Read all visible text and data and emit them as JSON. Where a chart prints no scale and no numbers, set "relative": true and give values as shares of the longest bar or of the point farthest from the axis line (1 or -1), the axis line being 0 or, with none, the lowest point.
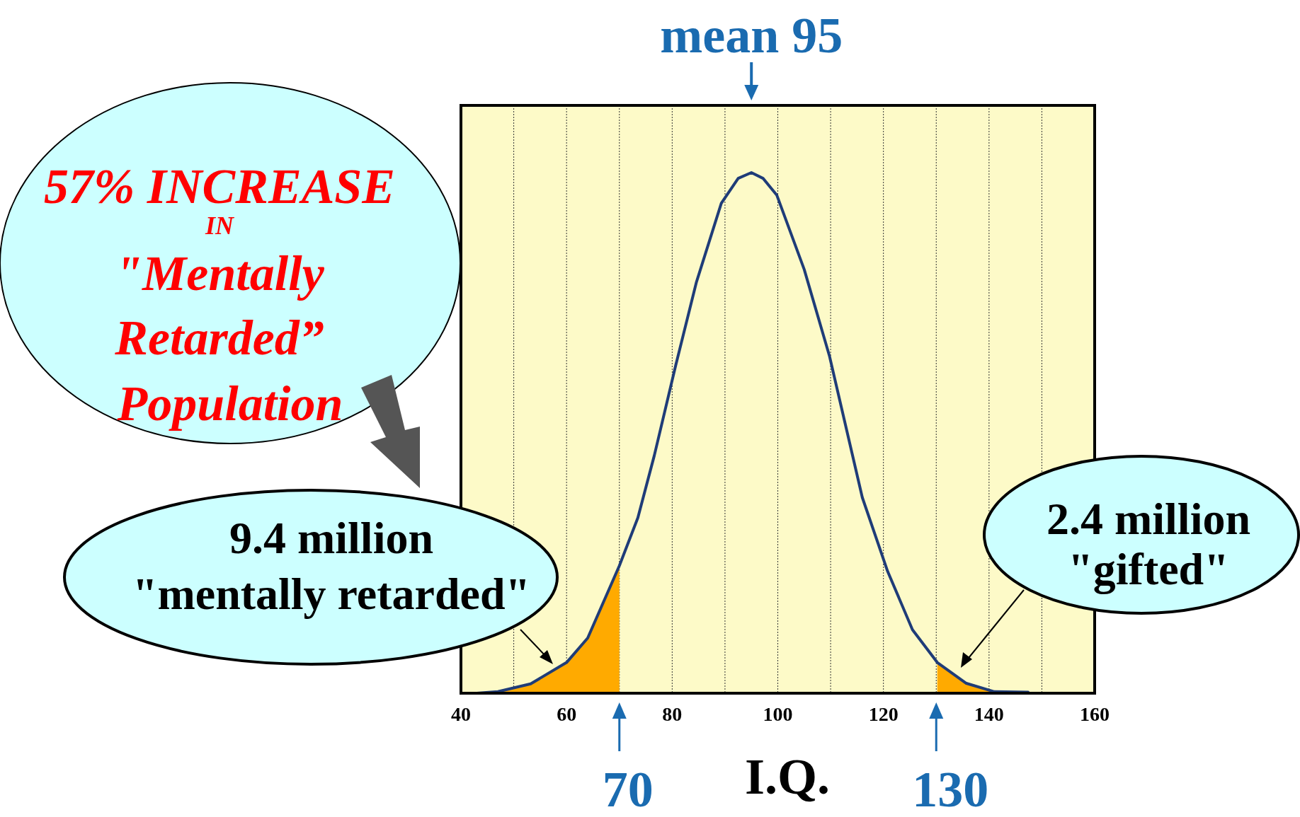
{
  "chart_data": {
    "type": "line",
    "xlabel": "I.Q.",
    "relative": true,
    "grid": "x",
    "xlim": [
      40,
      160
    ],
    "xticks": [
      40,
      {
        "value": 50,
        "label": null
      },
      60,
      {
        "value": 70,
        "label": null
      },
      80,
      {
        "value": 90,
        "label": null
      },
      100,
      {
        "value": 110,
        "label": null
      },
      120,
      {
        "value": 130,
        "label": null
      },
      140,
      {
        "value": 150,
        "label": null
      },
      160
    ],
    "series": [
      {
        "type": "area",
        "color": "#ffaa00",
        "x": [
          43,
          47,
          53.2,
          60,
          64,
          70
        ],
        "values": [
          0,
          0.003,
          0.018,
          0.059,
          0.106,
          0.245
        ]
      },
      {
        "type": "area",
        "color": "#ffaa00",
        "x": [
          130.2,
          135.7,
          141,
          147.4
        ],
        "values": [
          0.059,
          0.019,
          0.003,
          0.002
        ]
      },
      {
        "type": "line",
        "color": "#1f3c78",
        "x": [
          43,
          47,
          53.2,
          60,
          64,
          70,
          73.5,
          76.6,
          80.7,
          84.6,
          89.3,
          92.5,
          95,
          97.2,
          99.8,
          105,
          109.8,
          116,
          120.8,
          125.5,
          130.2,
          135.7,
          141,
          147.4
        ],
        "values": [
          0,
          0.003,
          0.018,
          0.059,
          0.106,
          0.245,
          0.337,
          0.456,
          0.631,
          0.79,
          0.941,
          0.989,
          1,
          0.989,
          0.957,
          0.814,
          0.647,
          0.376,
          0.234,
          0.122,
          0.059,
          0.019,
          0.003,
          0.002
        ]
      }
    ],
    "annotations": [
      {
        "text": "mean 95",
        "x": 95
      },
      {
        "text": "70",
        "x": 70
      },
      {
        "text": "130",
        "x": 130
      },
      "57% INCREASE\nIN\n\"Mentally\nRetarded”\nPopulation",
      "9.4 million\n\"mentally retarded\"",
      "2.4 million\n\"gifted\""
    ]
  }
}
